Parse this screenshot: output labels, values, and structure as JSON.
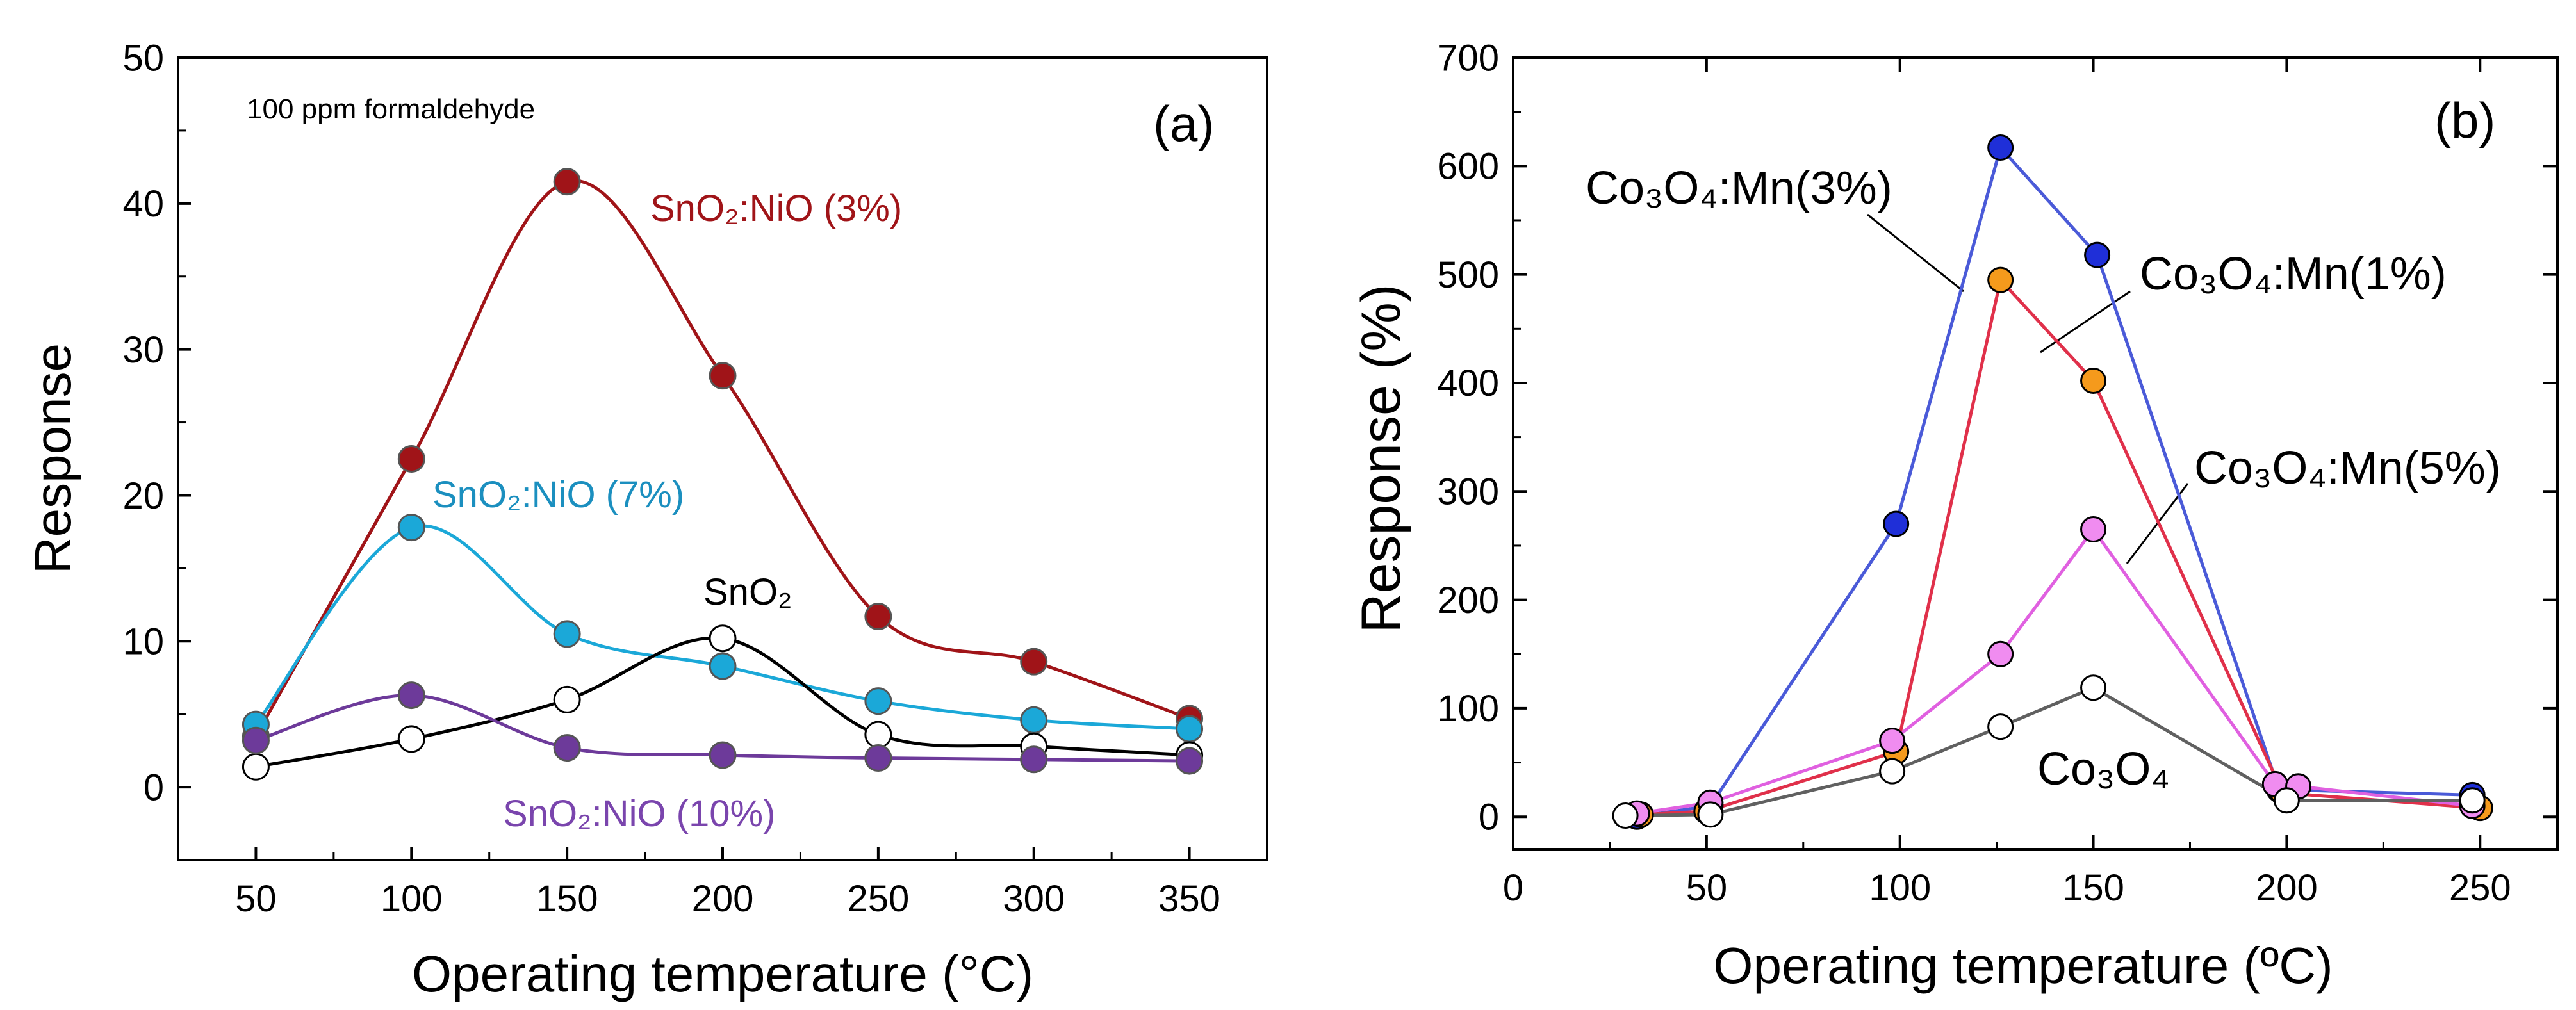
{
  "chart_data": [
    {
      "panel": "(a)",
      "type": "line",
      "title": "",
      "annotation": "100 ppm formaldehyde",
      "xlabel": "Operating temperature (°C)",
      "ylabel": "Response",
      "xlim": [
        25,
        375
      ],
      "ylim": [
        -5,
        50
      ],
      "xticks": [
        50,
        100,
        150,
        200,
        250,
        300,
        350
      ],
      "yticks": [
        0,
        10,
        20,
        30,
        40,
        50
      ],
      "grid": false,
      "series": [
        {
          "name": "SnO2:NiO (3%)",
          "color": "#a01418",
          "marker": "filled",
          "smooth": true,
          "x": [
            50,
            100,
            150,
            200,
            250,
            300,
            350
          ],
          "y": [
            3.5,
            22.5,
            41.5,
            28.2,
            11.7,
            8.6,
            4.7
          ]
        },
        {
          "name": "SnO2:NiO (7%)",
          "color": "#1ba8d8",
          "marker": "filled",
          "smooth": true,
          "x": [
            50,
            100,
            150,
            200,
            250,
            300,
            350
          ],
          "y": [
            4.3,
            17.8,
            10.5,
            8.3,
            5.9,
            4.6,
            4.0
          ]
        },
        {
          "name": "SnO2",
          "color": "#000000",
          "marker": "open",
          "smooth": true,
          "x": [
            50,
            100,
            150,
            200,
            250,
            300,
            350
          ],
          "y": [
            1.4,
            3.3,
            6.0,
            10.2,
            3.6,
            2.8,
            2.2
          ]
        },
        {
          "name": "SnO2:NiO (10%)",
          "color": "#6d3a9a",
          "marker": "filled",
          "smooth": true,
          "x": [
            50,
            100,
            150,
            200,
            250,
            300,
            350
          ],
          "y": [
            3.2,
            6.3,
            2.7,
            2.2,
            2.0,
            1.9,
            1.8
          ]
        }
      ],
      "labels": [
        {
          "text": "SnO₂:NiO (3%)",
          "color": "#a01418"
        },
        {
          "text": "SnO₂:NiO (7%)",
          "color": "#1b8fbf"
        },
        {
          "text": "SnO₂",
          "color": "#000000"
        },
        {
          "text": "SnO₂:NiO (10%)",
          "color": "#7a45ad"
        }
      ]
    },
    {
      "panel": "(b)",
      "type": "line",
      "title": "",
      "xlabel": "Operating temperature (ºC)",
      "ylabel": "Response (%)",
      "xlim": [
        0,
        270
      ],
      "ylim": [
        -30,
        700
      ],
      "xticks": [
        0,
        50,
        100,
        150,
        200,
        250
      ],
      "yticks": [
        0,
        100,
        200,
        300,
        400,
        500,
        600,
        700
      ],
      "grid": false,
      "series": [
        {
          "name": "Co3O4:Mn(3%)",
          "color": "#4a5ad8",
          "marker_color": "#1f2fd8",
          "x": [
            32,
            51,
            99,
            126,
            151,
            198,
            248
          ],
          "y": [
            0,
            10,
            270,
            617,
            518,
            25,
            20
          ]
        },
        {
          "name": "Co3O4:Mn(1%)",
          "color": "#e0304a",
          "marker_color": "#f59a1c",
          "x": [
            33,
            50,
            99,
            126,
            150,
            199,
            250
          ],
          "y": [
            2,
            5,
            60,
            495,
            402,
            22,
            8
          ]
        },
        {
          "name": "Co3O4:Mn(5%)",
          "color": "#e060e0",
          "marker_color": "#f08cf0",
          "x": [
            32,
            51,
            98,
            126,
            150,
            197,
            203,
            248
          ],
          "y": [
            3,
            13,
            70,
            150,
            265,
            30,
            28,
            10
          ]
        },
        {
          "name": "Co3O4",
          "color": "#606060",
          "marker_color": "#ffffff",
          "x": [
            29,
            51,
            98,
            126,
            150,
            200,
            248
          ],
          "y": [
            1,
            2,
            42,
            83,
            119,
            15,
            15
          ]
        }
      ],
      "labels": [
        {
          "text": "Co₃O₄:Mn(3%)"
        },
        {
          "text": "Co₃O₄:Mn(1%)"
        },
        {
          "text": "Co₃O₄:Mn(5%)"
        },
        {
          "text": "Co₃O₄"
        }
      ]
    }
  ]
}
